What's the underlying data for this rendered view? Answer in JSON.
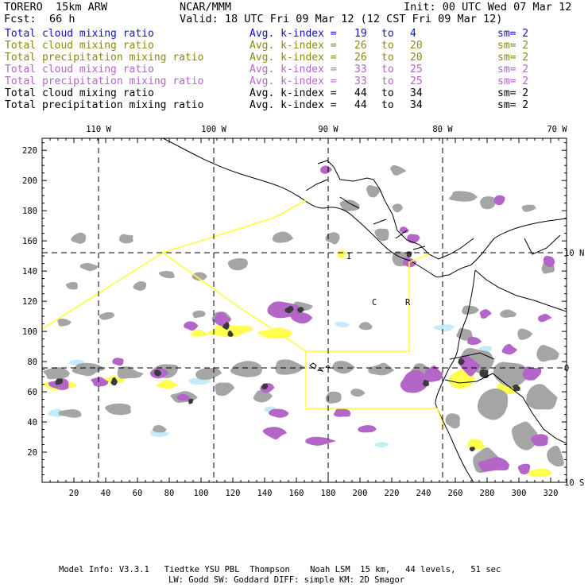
{
  "header": {
    "model": "TORERO  15km ARW",
    "center": "NCAR/MMM",
    "init": "Init: 00 UTC Wed 07 Mar 12",
    "fcst_label": "Fcst:",
    "fcst_value": "66 h",
    "valid": "Valid: 18 UTC Fri 09 Mar 12 (12 CST Fri 09 Mar 12)"
  },
  "legend": [
    {
      "field": "Total cloud mixing ratio",
      "avg": "Avg. k-index =",
      "from": "19",
      "to_word": "to",
      "to": "4",
      "sm": "sm= 2",
      "color": "#1010c8"
    },
    {
      "field": "Total cloud mixing ratio",
      "avg": "Avg. k-index =",
      "from": "26",
      "to_word": "to",
      "to": "20",
      "sm": "sm= 2",
      "color": "#8c8a12"
    },
    {
      "field": "Total precipitation mixing ratio",
      "avg": "Avg. k-index =",
      "from": "26",
      "to_word": "to",
      "to": "20",
      "sm": "sm= 2",
      "color": "#8c8a12"
    },
    {
      "field": "Total cloud mixing ratio",
      "avg": "Avg. k-index =",
      "from": "33",
      "to_word": "to",
      "to": "25",
      "sm": "sm= 2",
      "color": "#b466c8"
    },
    {
      "field": "Total precipitation mixing ratio",
      "avg": "Avg. k-index =",
      "from": "33",
      "to_word": "to",
      "to": "25",
      "sm": "sm= 2",
      "color": "#b466c8"
    },
    {
      "field": "Total cloud mixing ratio",
      "avg": "Avg. k-index =",
      "from": "44",
      "to_word": "to",
      "to": "34",
      "sm": "sm= 2",
      "color": "#000000"
    },
    {
      "field": "Total precipitation mixing ratio",
      "avg": "Avg. k-index =",
      "from": "44",
      "to_word": "to",
      "to": "34",
      "sm": "sm= 2",
      "color": "#000000"
    }
  ],
  "map": {
    "x_ticks": [
      "20",
      "40",
      "60",
      "80",
      "100",
      "120",
      "140",
      "160",
      "180",
      "200",
      "220",
      "240",
      "260",
      "280",
      "300",
      "320"
    ],
    "y_ticks": [
      "20",
      "40",
      "60",
      "80",
      "100",
      "120",
      "140",
      "160",
      "180",
      "200",
      "220"
    ],
    "lon_labels": [
      "110 W",
      "100 W",
      "90 W",
      "80 W",
      "70 W"
    ],
    "lat_labels": [
      "10 N",
      "0",
      "10 S"
    ],
    "region_labels": [
      "I",
      "C",
      "R"
    ],
    "colors": {
      "gray": "#a5a5a5",
      "dark": "#3a3a3a",
      "purple": "#b466c8",
      "yellow": "#ffff50",
      "cyan": "#c4ecf8",
      "boundary": "#ffff3c"
    }
  },
  "footer": {
    "line1": "Model Info: V3.3.1   Tiedtke YSU PBL  Thompson    Noah LSM  15 km,   44 levels,   51 sec",
    "line2": "LW: Godd SW: Goddard DIFF: simple KM: 2D Smagor"
  }
}
